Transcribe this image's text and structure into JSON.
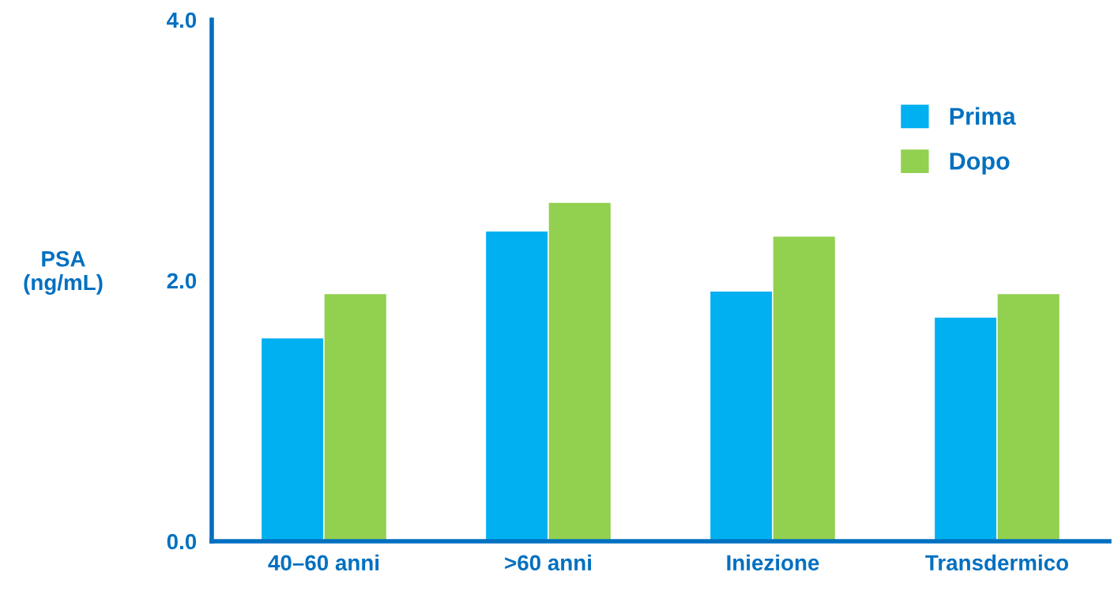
{
  "chart_data": {
    "type": "bar",
    "ylabel": "PSA\n(ng/mL)",
    "categories": [
      "40–60 anni",
      ">60 anni",
      "Iniezione",
      "Transdermico"
    ],
    "series": [
      {
        "name": "Prima",
        "color": "#00b0f0",
        "values": [
          1.56,
          2.38,
          1.92,
          1.72
        ]
      },
      {
        "name": "Dopo",
        "color": "#92d050",
        "values": [
          1.9,
          2.6,
          2.34,
          1.9
        ]
      }
    ],
    "ylim": [
      0,
      4
    ],
    "yticks": [
      {
        "value": 0,
        "label": "0.0"
      },
      {
        "value": 2,
        "label": "2.0"
      },
      {
        "value": 4,
        "label": "4.0"
      }
    ],
    "grid": false,
    "legend": "top right"
  }
}
